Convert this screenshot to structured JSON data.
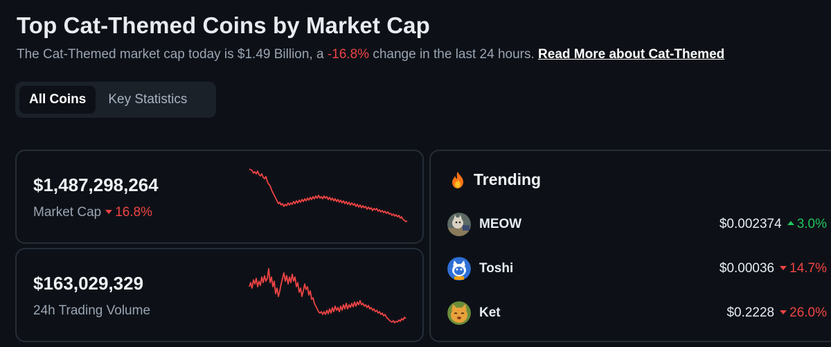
{
  "header": {
    "title": "Top Cat-Themed Coins by Market Cap",
    "subtitle_before": "The Cat-Themed market cap today is $1.49 Billion, a ",
    "subtitle_change": "-16.8%",
    "subtitle_after": " change in the last 24 hours. ",
    "read_more_label": "Read More about Cat-Themed"
  },
  "tabs": [
    {
      "label": "All Coins",
      "active": true
    },
    {
      "label": "Key Statistics",
      "active": false
    }
  ],
  "market_cap": {
    "value": "$1,487,298,264",
    "label": "Market Cap",
    "change": "16.8%",
    "change_direction": "down"
  },
  "volume": {
    "value": "$163,029,329",
    "label": "24h Trading Volume"
  },
  "trending": {
    "title": "Trending",
    "icon": "fire-icon",
    "coins": [
      {
        "name": "MEOW",
        "price": "$0.002374",
        "change": "3.0%",
        "direction": "up"
      },
      {
        "name": "Toshi",
        "price": "$0.00036",
        "change": "14.7%",
        "direction": "down"
      },
      {
        "name": "Ket",
        "price": "$0.2228",
        "change": "26.0%",
        "direction": "down"
      }
    ]
  },
  "colors": {
    "background": "#0d1117",
    "negative": "#ef4444",
    "positive": "#22c55e",
    "sparkline": "#ef4444"
  }
}
